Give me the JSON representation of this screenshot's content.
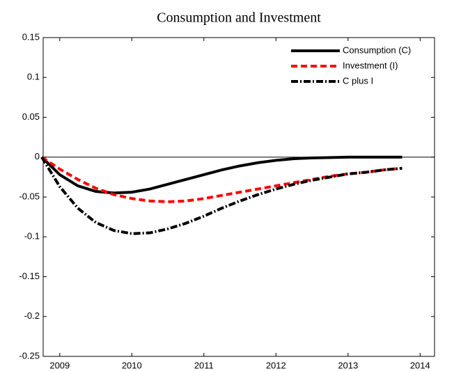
{
  "chart_data": {
    "type": "line",
    "title": "Consumption and Investment",
    "x": [
      2008.75,
      2009,
      2009.25,
      2009.5,
      2009.75,
      2010,
      2010.25,
      2010.5,
      2010.75,
      2011,
      2011.25,
      2011.5,
      2011.75,
      2012,
      2012.25,
      2012.5,
      2012.75,
      2013,
      2013.25,
      2013.5,
      2013.75
    ],
    "series": [
      {
        "name": "Consumption (C)",
        "color": "#000000",
        "dash": "solid",
        "values": [
          0,
          -0.022,
          -0.036,
          -0.043,
          -0.045,
          -0.044,
          -0.04,
          -0.034,
          -0.028,
          -0.022,
          -0.016,
          -0.011,
          -0.007,
          -0.004,
          -0.002,
          -0.001,
          -0.0005,
          0,
          0,
          0,
          0
        ]
      },
      {
        "name": "Investment (I)",
        "color": "#ff0000",
        "dash": "dashed",
        "values": [
          0,
          -0.015,
          -0.028,
          -0.039,
          -0.047,
          -0.052,
          -0.055,
          -0.056,
          -0.055,
          -0.052,
          -0.048,
          -0.044,
          -0.04,
          -0.036,
          -0.032,
          -0.028,
          -0.024,
          -0.021,
          -0.019,
          -0.016,
          -0.014
        ]
      },
      {
        "name": "C plus I",
        "color": "#000000",
        "dash": "dashdot",
        "values": [
          0,
          -0.037,
          -0.064,
          -0.082,
          -0.092,
          -0.096,
          -0.095,
          -0.09,
          -0.083,
          -0.074,
          -0.064,
          -0.055,
          -0.047,
          -0.04,
          -0.034,
          -0.029,
          -0.025,
          -0.021,
          -0.019,
          -0.016,
          -0.014
        ]
      }
    ],
    "xlim": [
      2008.77,
      2014.2
    ],
    "xticks": [
      2009,
      2010,
      2011,
      2012,
      2013,
      2014
    ],
    "ylim": [
      -0.25,
      0.15
    ],
    "yticks": [
      -0.25,
      -0.2,
      -0.15,
      -0.1,
      -0.05,
      0,
      0.05,
      0.1,
      0.15
    ],
    "zero_line": true,
    "legend": "upper right"
  }
}
